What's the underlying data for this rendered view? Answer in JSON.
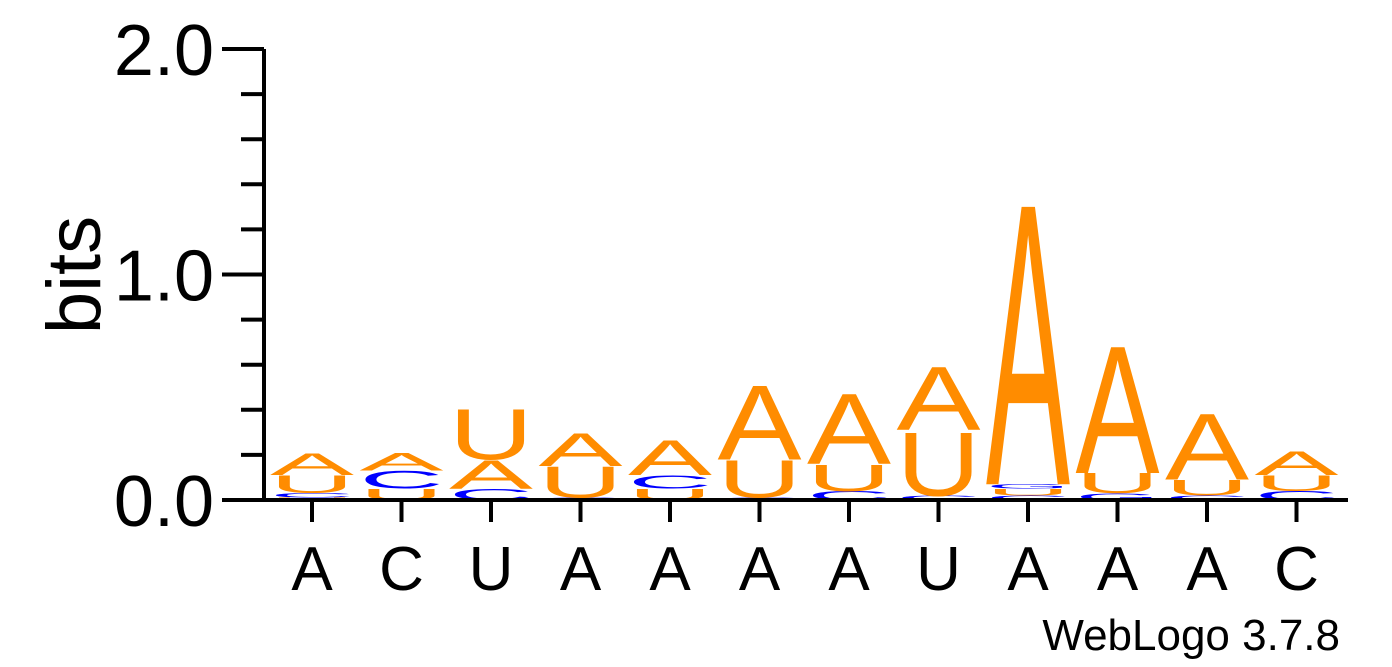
{
  "chart_data": {
    "type": "sequence-logo",
    "ylabel": "bits",
    "ylim": [
      0,
      2.0
    ],
    "yticks_major": [
      {
        "value": 0.0,
        "label": "0.0"
      },
      {
        "value": 1.0,
        "label": "1.0"
      },
      {
        "value": 2.0,
        "label": "2.0"
      }
    ],
    "yticks_minor_step": 0.2,
    "xtick_labels": [
      "A",
      "C",
      "U",
      "A",
      "A",
      "A",
      "A",
      "U",
      "A",
      "A",
      "A",
      "C"
    ],
    "stacks": [
      [
        {
          "letter": "U",
          "bits": 0.01
        },
        {
          "letter": "C",
          "bits": 0.02
        },
        {
          "letter": "U",
          "bits": 0.08
        },
        {
          "letter": "A",
          "bits": 0.1
        }
      ],
      [
        {
          "letter": "U",
          "bits": 0.05
        },
        {
          "letter": "C",
          "bits": 0.08
        },
        {
          "letter": "A",
          "bits": 0.08
        }
      ],
      [
        {
          "letter": "C",
          "bits": 0.05
        },
        {
          "letter": "A",
          "bits": 0.13
        },
        {
          "letter": "U",
          "bits": 0.23
        }
      ],
      [
        {
          "letter": "C",
          "bits": 0.01
        },
        {
          "letter": "U",
          "bits": 0.14
        },
        {
          "letter": "A",
          "bits": 0.15
        }
      ],
      [
        {
          "letter": "U",
          "bits": 0.05
        },
        {
          "letter": "C",
          "bits": 0.06
        },
        {
          "letter": "A",
          "bits": 0.16
        }
      ],
      [
        {
          "letter": "C",
          "bits": 0.01
        },
        {
          "letter": "U",
          "bits": 0.17
        },
        {
          "letter": "A",
          "bits": 0.34
        }
      ],
      [
        {
          "letter": "C",
          "bits": 0.04
        },
        {
          "letter": "U",
          "bits": 0.12
        },
        {
          "letter": "A",
          "bits": 0.32
        }
      ],
      [
        {
          "letter": "C",
          "bits": 0.02
        },
        {
          "letter": "U",
          "bits": 0.29
        },
        {
          "letter": "A",
          "bits": 0.29
        }
      ],
      [
        {
          "letter": "C",
          "bits": 0.02
        },
        {
          "letter": "U",
          "bits": 0.03
        },
        {
          "letter": "G",
          "bits": 0.02
        },
        {
          "letter": "A",
          "bits": 1.28
        }
      ],
      [
        {
          "letter": "G",
          "bits": 0.03
        },
        {
          "letter": "U",
          "bits": 0.09
        },
        {
          "letter": "A",
          "bits": 0.58
        }
      ],
      [
        {
          "letter": "C",
          "bits": 0.02
        },
        {
          "letter": "U",
          "bits": 0.07
        },
        {
          "letter": "A",
          "bits": 0.3
        }
      ],
      [
        {
          "letter": "C",
          "bits": 0.04
        },
        {
          "letter": "U",
          "bits": 0.07
        },
        {
          "letter": "A",
          "bits": 0.11
        }
      ]
    ],
    "colors": {
      "A": "#ff8c00",
      "U": "#ff8c00",
      "C": "#0000ff",
      "G": "#0000ff"
    },
    "footer": "WebLogo 3.7.8"
  }
}
